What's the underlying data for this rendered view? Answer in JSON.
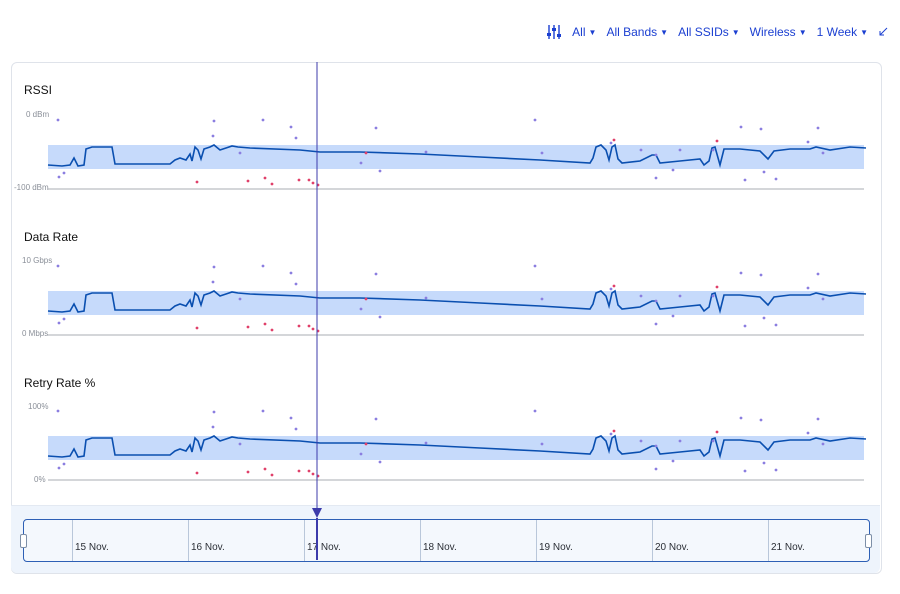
{
  "toolbar": {
    "settings_icon": "sliders-icon",
    "filters": [
      {
        "label": "All"
      },
      {
        "label": "All Bands"
      },
      {
        "label": "All SSIDs"
      },
      {
        "label": "Wireless"
      },
      {
        "label": "1 Week"
      }
    ],
    "collapse_icon": "arrow-diagonal-icon"
  },
  "colors": {
    "accent": "#1b3fd1",
    "line": "#0a4fb0",
    "band": "#c6dafb",
    "marker": "#3c3bab",
    "dot_purple": "#8b7ee0",
    "dot_red": "#e0406a"
  },
  "charts": [
    {
      "title": "RSSI",
      "top_label": "0 dBm",
      "bottom_label": "-100 dBm"
    },
    {
      "title": "Data Rate",
      "top_label": "10 Gbps",
      "bottom_label": "0 Mbps"
    },
    {
      "title": "Retry Rate %",
      "top_label": "100%",
      "bottom_label": "0%"
    }
  ],
  "timeline": {
    "days": [
      "15 Nov.",
      "16 Nov.",
      "17 Nov.",
      "18 Nov.",
      "19 Nov.",
      "20 Nov.",
      "21 Nov."
    ]
  }
}
